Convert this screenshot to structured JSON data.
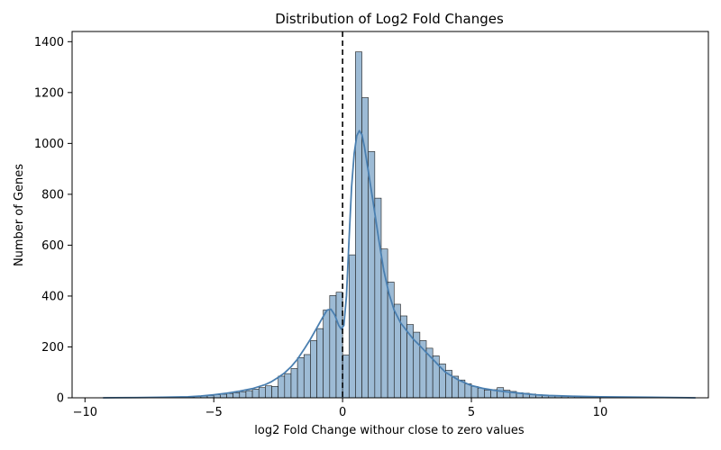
{
  "chart_data": {
    "type": "bar",
    "title": "Distribution of Log2 Fold Changes",
    "xlabel": "log2 Fold Change withour close to zero values",
    "ylabel": "Number of Genes",
    "xlim": [
      -10.5,
      14.2
    ],
    "ylim": [
      0,
      1440
    ],
    "xticks": [
      -10,
      -5,
      0,
      5,
      10
    ],
    "yticks": [
      0,
      200,
      400,
      600,
      800,
      1000,
      1200,
      1400
    ],
    "bin_width": 0.25,
    "grid": false,
    "reference_line": {
      "x": 0,
      "style": "dashed",
      "color": "#000000"
    },
    "bar_fill": "#9dbbd5",
    "bar_edge": "#1a1a1a",
    "kde_color": "#4a7fb0",
    "bins": [
      {
        "x0": -9.25,
        "count": 1
      },
      {
        "x0": -9.0,
        "count": 1
      },
      {
        "x0": -8.75,
        "count": 1
      },
      {
        "x0": -8.5,
        "count": 1
      },
      {
        "x0": -8.25,
        "count": 1
      },
      {
        "x0": -8.0,
        "count": 1
      },
      {
        "x0": -7.75,
        "count": 1
      },
      {
        "x0": -7.5,
        "count": 1
      },
      {
        "x0": -7.25,
        "count": 1
      },
      {
        "x0": -7.0,
        "count": 2
      },
      {
        "x0": -6.75,
        "count": 2
      },
      {
        "x0": -6.5,
        "count": 2
      },
      {
        "x0": -6.25,
        "count": 3
      },
      {
        "x0": -6.0,
        "count": 3
      },
      {
        "x0": -5.75,
        "count": 5
      },
      {
        "x0": -5.5,
        "count": 7
      },
      {
        "x0": -5.25,
        "count": 9
      },
      {
        "x0": -5.0,
        "count": 12
      },
      {
        "x0": -4.75,
        "count": 14
      },
      {
        "x0": -4.5,
        "count": 17
      },
      {
        "x0": -4.25,
        "count": 20
      },
      {
        "x0": -4.0,
        "count": 24
      },
      {
        "x0": -3.75,
        "count": 28
      },
      {
        "x0": -3.5,
        "count": 34
      },
      {
        "x0": -3.25,
        "count": 40
      },
      {
        "x0": -3.0,
        "count": 47
      },
      {
        "x0": -2.75,
        "count": 45
      },
      {
        "x0": -2.5,
        "count": 85
      },
      {
        "x0": -2.25,
        "count": 95
      },
      {
        "x0": -2.0,
        "count": 115
      },
      {
        "x0": -1.75,
        "count": 158
      },
      {
        "x0": -1.5,
        "count": 170
      },
      {
        "x0": -1.25,
        "count": 225
      },
      {
        "x0": -1.0,
        "count": 272
      },
      {
        "x0": -0.75,
        "count": 345
      },
      {
        "x0": -0.5,
        "count": 402
      },
      {
        "x0": -0.25,
        "count": 415
      },
      {
        "x0": 0.0,
        "count": 168
      },
      {
        "x0": 0.25,
        "count": 562
      },
      {
        "x0": 0.5,
        "count": 1360
      },
      {
        "x0": 0.75,
        "count": 1180
      },
      {
        "x0": 1.0,
        "count": 968
      },
      {
        "x0": 1.25,
        "count": 785
      },
      {
        "x0": 1.5,
        "count": 585
      },
      {
        "x0": 1.75,
        "count": 455
      },
      {
        "x0": 2.0,
        "count": 368
      },
      {
        "x0": 2.25,
        "count": 322
      },
      {
        "x0": 2.5,
        "count": 288
      },
      {
        "x0": 2.75,
        "count": 258
      },
      {
        "x0": 3.0,
        "count": 225
      },
      {
        "x0": 3.25,
        "count": 195
      },
      {
        "x0": 3.5,
        "count": 165
      },
      {
        "x0": 3.75,
        "count": 133
      },
      {
        "x0": 4.0,
        "count": 108
      },
      {
        "x0": 4.25,
        "count": 85
      },
      {
        "x0": 4.5,
        "count": 70
      },
      {
        "x0": 4.75,
        "count": 55
      },
      {
        "x0": 5.0,
        "count": 45
      },
      {
        "x0": 5.25,
        "count": 38
      },
      {
        "x0": 5.5,
        "count": 30
      },
      {
        "x0": 5.75,
        "count": 32
      },
      {
        "x0": 6.0,
        "count": 40
      },
      {
        "x0": 6.25,
        "count": 30
      },
      {
        "x0": 6.5,
        "count": 25
      },
      {
        "x0": 6.75,
        "count": 20
      },
      {
        "x0": 7.0,
        "count": 18
      },
      {
        "x0": 7.25,
        "count": 15
      },
      {
        "x0": 7.5,
        "count": 12
      },
      {
        "x0": 7.75,
        "count": 10
      },
      {
        "x0": 8.0,
        "count": 8
      },
      {
        "x0": 8.25,
        "count": 7
      },
      {
        "x0": 8.5,
        "count": 6
      },
      {
        "x0": 8.75,
        "count": 5
      },
      {
        "x0": 9.0,
        "count": 5
      },
      {
        "x0": 9.25,
        "count": 4
      },
      {
        "x0": 9.5,
        "count": 3
      },
      {
        "x0": 9.75,
        "count": 3
      },
      {
        "x0": 10.0,
        "count": 3
      },
      {
        "x0": 10.25,
        "count": 3
      },
      {
        "x0": 10.5,
        "count": 3
      },
      {
        "x0": 10.75,
        "count": 2
      },
      {
        "x0": 11.0,
        "count": 2
      },
      {
        "x0": 11.25,
        "count": 2
      },
      {
        "x0": 11.5,
        "count": 2
      },
      {
        "x0": 11.75,
        "count": 2
      },
      {
        "x0": 12.0,
        "count": 1
      },
      {
        "x0": 12.25,
        "count": 1
      },
      {
        "x0": 12.5,
        "count": 1
      },
      {
        "x0": 12.75,
        "count": 1
      },
      {
        "x0": 13.0,
        "count": 1
      },
      {
        "x0": 13.25,
        "count": 1
      }
    ],
    "kde": {
      "x": [
        -9.3,
        -8,
        -7,
        -6,
        -5.5,
        -5,
        -4.5,
        -4,
        -3.5,
        -3,
        -2.75,
        -2.5,
        -2.25,
        -2,
        -1.75,
        -1.5,
        -1.25,
        -1,
        -0.75,
        -0.6,
        -0.45,
        -0.3,
        -0.15,
        -0.05,
        0.05,
        0.15,
        0.25,
        0.35,
        0.45,
        0.55,
        0.65,
        0.75,
        0.85,
        1.0,
        1.2,
        1.4,
        1.6,
        1.8,
        2.0,
        2.25,
        2.5,
        2.75,
        3.0,
        3.25,
        3.5,
        3.75,
        4.0,
        4.5,
        5.0,
        5.5,
        6.0,
        6.5,
        7.0,
        7.5,
        8.0,
        9.0,
        10.0,
        11.0,
        12.0,
        13.7
      ],
      "y": [
        0,
        1,
        2,
        4,
        7,
        12,
        18,
        26,
        36,
        52,
        64,
        80,
        98,
        122,
        152,
        190,
        230,
        275,
        320,
        345,
        348,
        325,
        285,
        270,
        285,
        400,
        620,
        830,
        960,
        1030,
        1050,
        1035,
        985,
        890,
        760,
        625,
        500,
        410,
        345,
        295,
        262,
        230,
        205,
        178,
        152,
        125,
        100,
        70,
        48,
        36,
        28,
        22,
        17,
        12,
        9,
        6,
        4,
        3,
        2,
        0
      ]
    }
  }
}
